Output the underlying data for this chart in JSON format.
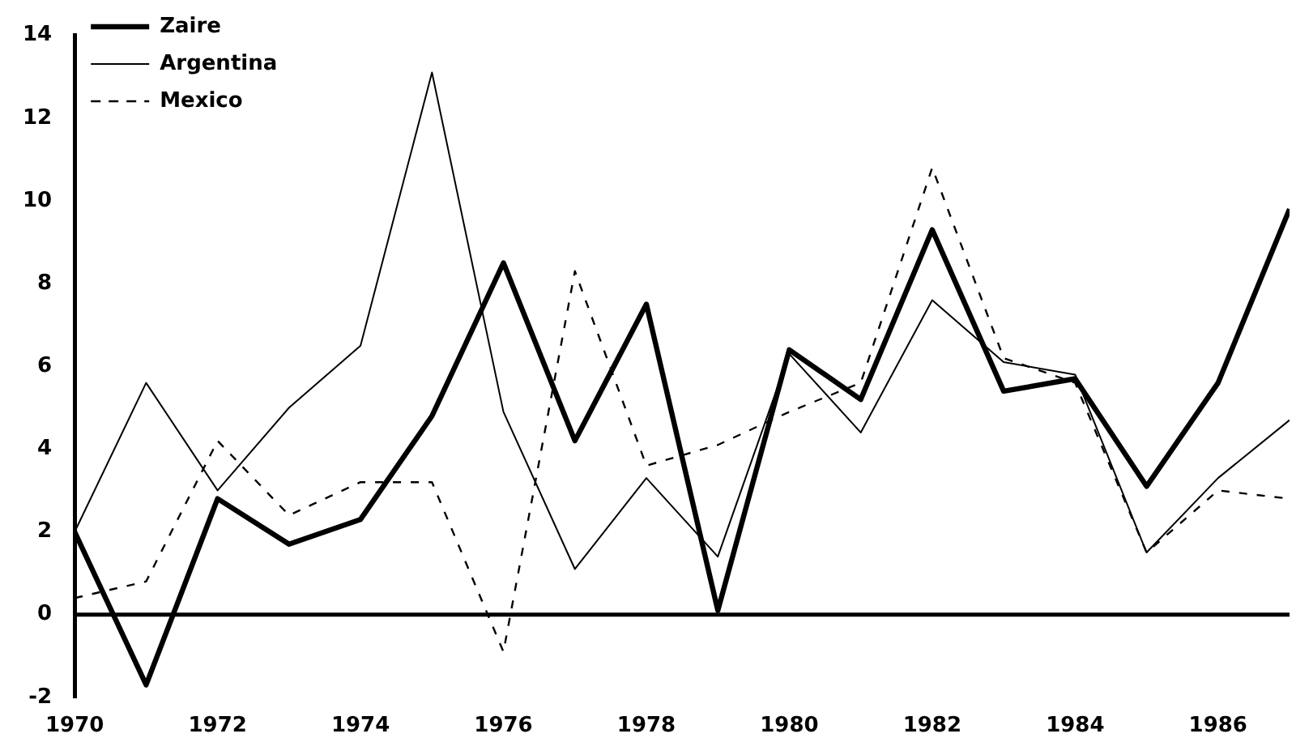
{
  "chart_data": {
    "type": "line",
    "x": [
      1970,
      1971,
      1972,
      1973,
      1974,
      1975,
      1976,
      1977,
      1978,
      1979,
      1980,
      1981,
      1982,
      1983,
      1984,
      1985,
      1986,
      1987
    ],
    "xlim": [
      1970,
      1987
    ],
    "xticks": [
      1970,
      1972,
      1974,
      1976,
      1978,
      1980,
      1982,
      1984,
      1986
    ],
    "ylim": [
      -2,
      14
    ],
    "yticks": [
      -2,
      0,
      2,
      4,
      6,
      8,
      10,
      12,
      14
    ],
    "grid": false,
    "ref_lines": [
      {
        "axis": "y",
        "value": 0,
        "color": "#000000",
        "line_style": "solid"
      }
    ],
    "legend": "top left",
    "marker": "none",
    "series": [
      {
        "name": "Zaire",
        "color": "#000000",
        "line_style": "solid",
        "values": [
          2.0,
          -1.7,
          2.8,
          1.7,
          2.3,
          4.8,
          8.5,
          4.2,
          7.5,
          0.1,
          6.4,
          5.2,
          9.3,
          5.4,
          5.7,
          3.1,
          5.6,
          9.8
        ]
      },
      {
        "name": "Argentina",
        "color": "#000000",
        "line_style": "solid",
        "values": [
          2.0,
          5.6,
          3.0,
          5.0,
          6.5,
          13.1,
          4.9,
          1.1,
          3.3,
          1.4,
          6.3,
          4.4,
          7.6,
          6.1,
          5.8,
          1.5,
          3.3,
          4.7
        ]
      },
      {
        "name": "Mexico",
        "color": "#000000",
        "line_style": "dashed",
        "values": [
          0.4,
          0.8,
          4.2,
          2.4,
          3.2,
          3.2,
          -0.9,
          8.3,
          3.6,
          4.1,
          4.9,
          5.6,
          10.8,
          6.2,
          5.6,
          1.5,
          3.0,
          2.8
        ]
      }
    ]
  }
}
